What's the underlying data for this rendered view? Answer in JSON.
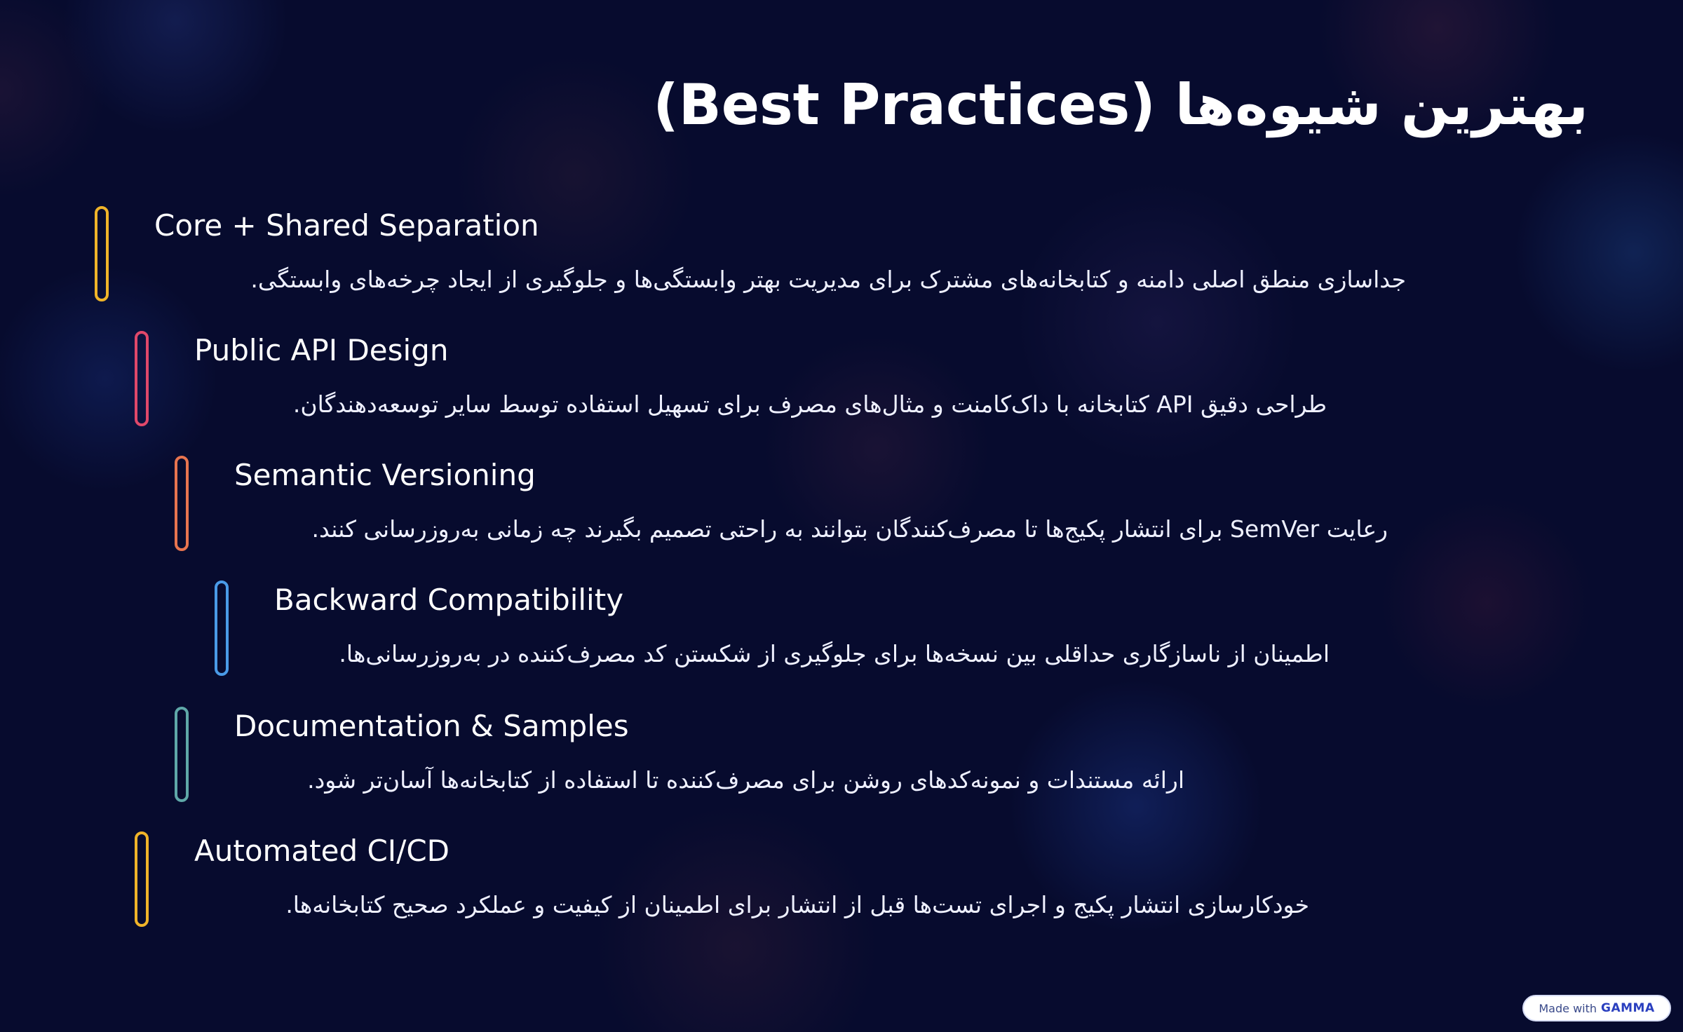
{
  "title": "بهترین شیوه‌ها (Best Practices)",
  "items": [
    {
      "title": "Core + Shared Separation",
      "desc": "جداسازی منطق اصلی دامنه و کتابخانه‌های مشترک برای مدیریت بهتر وابستگی‌ها و جلوگیری از ایجاد چرخه‌های وابستگی.",
      "color": "#f0b429"
    },
    {
      "title": "Public API Design",
      "desc": "طراحی دقیق API کتابخانه با داک‌کامنت و مثال‌های مصرف برای تسهیل استفاده توسط سایر توسعه‌دهندگان.",
      "color": "#e0486a"
    },
    {
      "title": "Semantic Versioning",
      "desc": "رعایت SemVer برای انتشار پکیج‌ها تا مصرف‌کنندگان بتوانند به راحتی تصمیم بگیرند چه زمانی به‌روزرسانی کنند.",
      "color": "#e8744f"
    },
    {
      "title": "Backward Compatibility",
      "desc": "اطمینان از ناسازگاری حداقلی بین نسخه‌ها برای جلوگیری از شکستن کد مصرف‌کننده در به‌روزرسانی‌ها.",
      "color": "#4a9be8"
    },
    {
      "title": "Documentation & Samples",
      "desc": "ارائه مستندات و نمونه‌کدهای روشن برای مصرف‌کننده تا استفاده از کتابخانه‌ها آسان‌تر شود.",
      "color": "#5fa8a8"
    },
    {
      "title": "Automated CI/CD",
      "desc": "خودکارسازی انتشار پکیج و اجرای تست‌ها قبل از انتشار برای اطمینان از کیفیت و عملکرد صحیح کتابخانه‌ها.",
      "color": "#f0b429"
    }
  ],
  "badge": {
    "made_with": "Made with",
    "brand": "GAMMA"
  }
}
